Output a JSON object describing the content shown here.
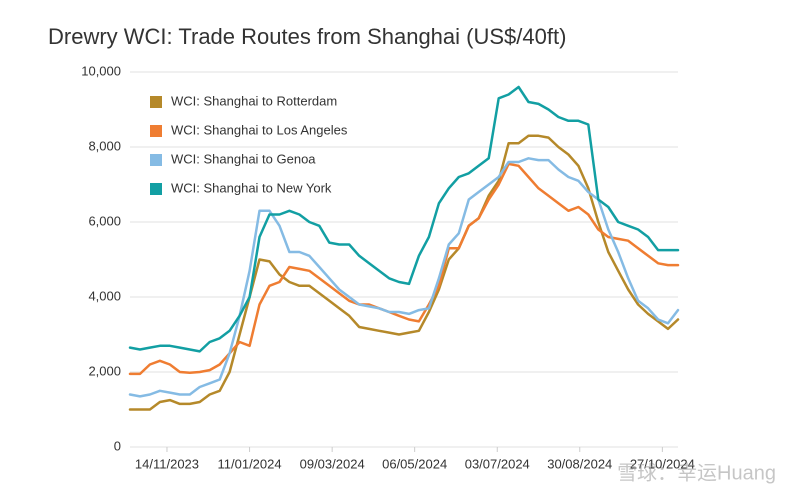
{
  "chart_data": {
    "type": "line",
    "title": "Drewry WCI: Trade Routes from Shanghai (US$/40ft)",
    "watermark": "雪球：幸运Huang",
    "xlim": [
      0,
      55
    ],
    "xticks": [
      {
        "value": 3.71,
        "label": "14/11/2023"
      },
      {
        "value": 12.0,
        "label": "11/01/2024"
      },
      {
        "value": 20.29,
        "label": "09/03/2024"
      },
      {
        "value": 28.57,
        "label": "06/05/2024"
      },
      {
        "value": 36.86,
        "label": "03/07/2024"
      },
      {
        "value": 45.14,
        "label": "30/08/2024"
      },
      {
        "value": 53.43,
        "label": "27/10/2024"
      }
    ],
    "ylim": [
      0,
      10000
    ],
    "yticks": [
      0,
      {
        "value": 2000,
        "label": "2,000"
      },
      {
        "value": 4000,
        "label": "4,000"
      },
      {
        "value": 6000,
        "label": "6,000"
      },
      {
        "value": 8000,
        "label": "8,000"
      },
      {
        "value": 10000,
        "label": "10,000"
      }
    ],
    "grid": true,
    "legend": "upper-left",
    "series": [
      {
        "name": "WCI: Shanghai to Rotterdam",
        "color": "#b5892a",
        "values": [
          1000,
          1000,
          1000,
          1200,
          1250,
          1150,
          1150,
          1200,
          1400,
          1500,
          2000,
          3000,
          4000,
          5000,
          4950,
          4600,
          4400,
          4300,
          4300,
          4100,
          3900,
          3700,
          3500,
          3200,
          3150,
          3100,
          3050,
          3000,
          3050,
          3100,
          3600,
          4200,
          5000,
          5300,
          5900,
          6100,
          6700,
          7100,
          8100,
          8100,
          8300,
          8300,
          8250,
          8000,
          7800,
          7500,
          6900,
          6000,
          5200,
          4700,
          4200,
          3800,
          3550,
          3350,
          3150,
          3400
        ]
      },
      {
        "name": "WCI: Shanghai to Los Angeles",
        "color": "#ef7d32",
        "values": [
          1950,
          1950,
          2200,
          2300,
          2200,
          2000,
          1980,
          2000,
          2050,
          2200,
          2500,
          2800,
          2700,
          3800,
          4300,
          4400,
          4800,
          4750,
          4700,
          4500,
          4300,
          4100,
          3900,
          3800,
          3800,
          3700,
          3600,
          3500,
          3400,
          3350,
          3800,
          4300,
          5300,
          5300,
          5900,
          6100,
          6600,
          7000,
          7550,
          7500,
          7200,
          6900,
          6700,
          6500,
          6300,
          6400,
          6200,
          5800,
          5600,
          5550,
          5500,
          5300,
          5100,
          4900,
          4850,
          4850
        ]
      },
      {
        "name": "WCI: Shanghai to Genoa",
        "color": "#85bbe4",
        "values": [
          1400,
          1350,
          1400,
          1500,
          1450,
          1400,
          1400,
          1600,
          1700,
          1800,
          2500,
          3500,
          4700,
          6300,
          6300,
          5900,
          5200,
          5200,
          5100,
          4800,
          4500,
          4200,
          4000,
          3800,
          3750,
          3700,
          3600,
          3600,
          3550,
          3650,
          3700,
          4500,
          5400,
          5700,
          6600,
          6800,
          7000,
          7200,
          7600,
          7600,
          7700,
          7650,
          7650,
          7400,
          7200,
          7100,
          6800,
          6600,
          5800,
          5200,
          4500,
          3900,
          3700,
          3400,
          3300,
          3650
        ]
      },
      {
        "name": "WCI: Shanghai to New York",
        "color": "#129fa3",
        "values": [
          2650,
          2600,
          2650,
          2700,
          2700,
          2650,
          2600,
          2550,
          2800,
          2900,
          3100,
          3500,
          4000,
          5600,
          6200,
          6200,
          6300,
          6200,
          6000,
          5900,
          5450,
          5400,
          5400,
          5100,
          4900,
          4700,
          4500,
          4400,
          4350,
          5100,
          5600,
          6500,
          6900,
          7200,
          7300,
          7500,
          7700,
          9300,
          9400,
          9600,
          9200,
          9150,
          9000,
          8800,
          8700,
          8700,
          8600,
          6600,
          6400,
          6000,
          5900,
          5800,
          5600,
          5250,
          5250,
          5250
        ]
      }
    ]
  }
}
